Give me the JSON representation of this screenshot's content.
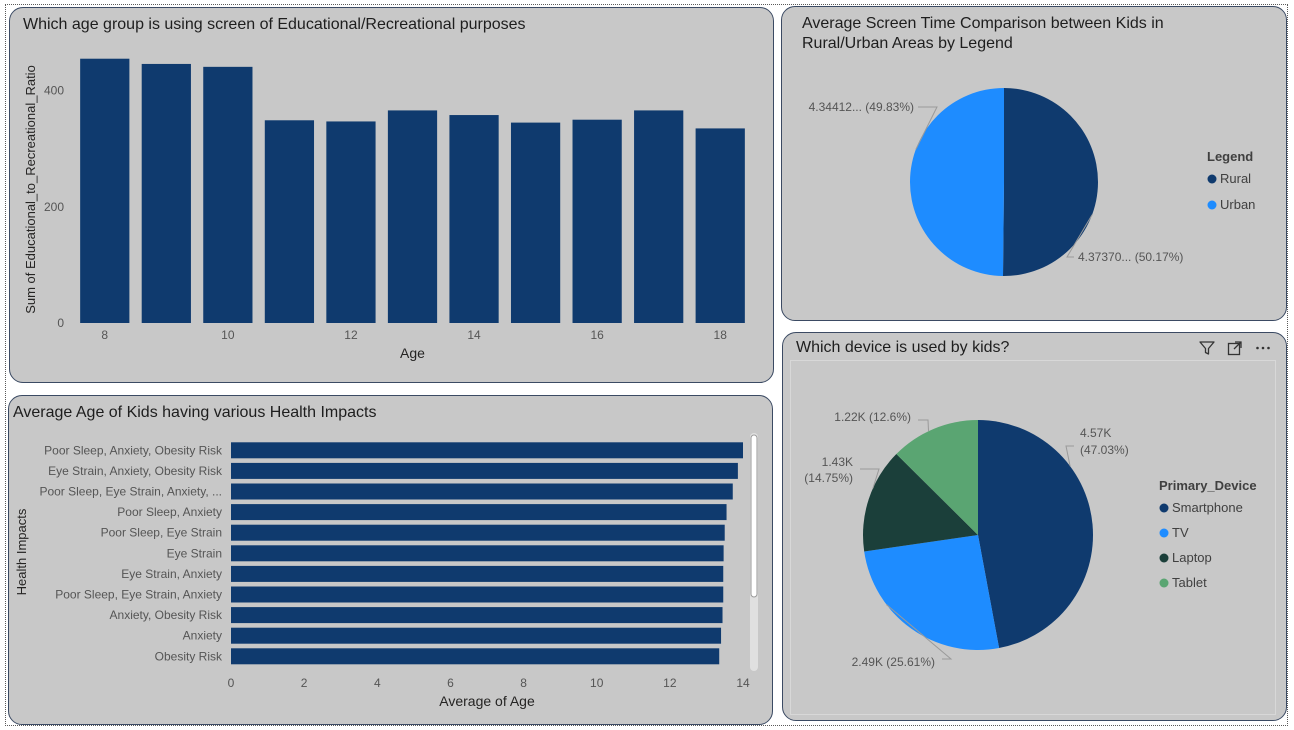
{
  "colors": {
    "navy": "#0f3a6e",
    "blue": "#1e8cff",
    "dark_green": "#1b3f3a",
    "green": "#5aa572",
    "card_bg": "#c8c8c8"
  },
  "visual_header_icons": [
    "filter-icon",
    "focus-mode-icon",
    "more-options-icon"
  ],
  "chart_data": [
    {
      "type": "bar",
      "title": "Which age group is using screen of Educational/Recreational purposes",
      "xlabel": "Age",
      "ylabel": "Sum of Educational_to_Recreational_Ratio",
      "x": [
        8,
        9,
        10,
        11,
        12,
        13,
        14,
        15,
        16,
        17,
        18
      ],
      "values": [
        455,
        446,
        441,
        349,
        347,
        366,
        358,
        345,
        350,
        366,
        335
      ],
      "xticks": [
        "8",
        "10",
        "12",
        "14",
        "16",
        "18"
      ],
      "ylim": [
        0,
        470
      ],
      "yticks": [
        "0",
        "200",
        "400"
      ],
      "color": "#0f3a6e"
    },
    {
      "type": "pie",
      "title": "Average Screen Time Comparison between Kids in Rural/Urban Areas by Legend",
      "legend_title": "Legend",
      "legend_position": "right",
      "slices": [
        {
          "label": "Rural",
          "value": 4.3737,
          "display": "4.37370... (50.17%)",
          "color": "#0f3a6e"
        },
        {
          "label": "Urban",
          "value": 4.34412,
          "display": "4.34412... (49.83%)",
          "color": "#1e8cff"
        }
      ]
    },
    {
      "type": "bar",
      "orientation": "horizontal",
      "title": "Average Age of Kids having various Health Impacts",
      "xlabel": "Average of Age",
      "ylabel": "Health Impacts",
      "categories": [
        "Poor Sleep, Anxiety, Obesity Risk",
        "Eye Strain, Anxiety, Obesity Risk",
        "Poor Sleep, Eye Strain, Anxiety, ...",
        "Poor Sleep, Anxiety",
        "Poor Sleep, Eye Strain",
        "Eye Strain",
        "Eye Strain, Anxiety",
        "Poor Sleep, Eye Strain, Anxiety",
        "Anxiety, Obesity Risk",
        "Anxiety",
        "Obesity Risk"
      ],
      "values": [
        14.0,
        13.86,
        13.72,
        13.55,
        13.5,
        13.47,
        13.46,
        13.46,
        13.44,
        13.4,
        13.35
      ],
      "xticks": [
        "0",
        "2",
        "4",
        "6",
        "8",
        "10",
        "12",
        "14"
      ],
      "xlim": [
        0,
        14
      ],
      "color": "#0f3a6e"
    },
    {
      "type": "pie",
      "title": "Which device is used by kids?",
      "legend_title": "Primary_Device",
      "legend_position": "right",
      "slices": [
        {
          "label": "Smartphone",
          "value": 4.57,
          "display_lines": [
            "4.57K",
            "(47.03%)"
          ],
          "color": "#0f3a6e"
        },
        {
          "label": "TV",
          "value": 2.49,
          "display_lines": [
            "2.49K (25.61%)"
          ],
          "color": "#1e8cff"
        },
        {
          "label": "Laptop",
          "value": 1.43,
          "display_lines": [
            "1.43K",
            "(14.75%)"
          ],
          "color": "#1b3f3a"
        },
        {
          "label": "Tablet",
          "value": 1.22,
          "display_lines": [
            "1.22K (12.6%)"
          ],
          "color": "#5aa572"
        }
      ]
    }
  ]
}
